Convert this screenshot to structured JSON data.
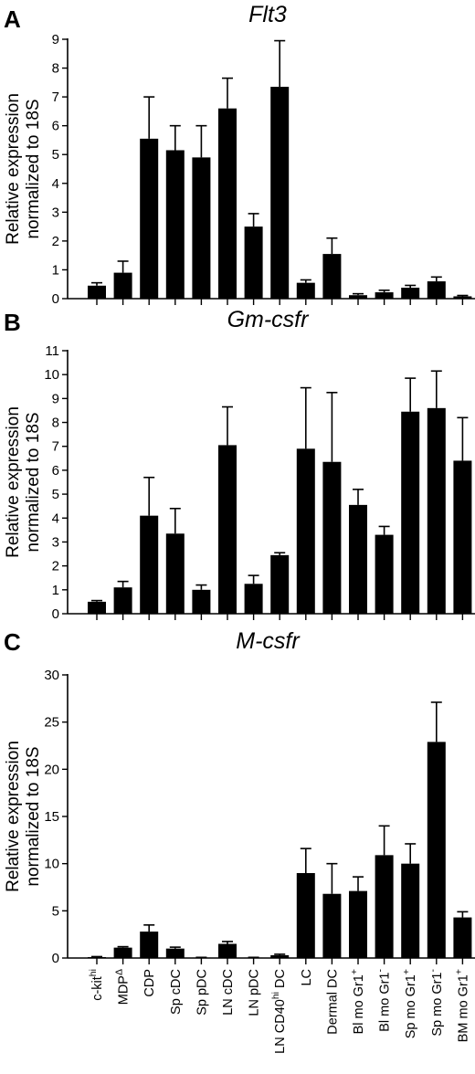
{
  "chart_data": [
    {
      "type": "bar",
      "panel": "A",
      "title": "Flt3",
      "ylabel": [
        "Relative expression",
        "normalized to 18S"
      ],
      "ylim": [
        0,
        9
      ],
      "yticks": [
        0,
        1,
        2,
        3,
        4,
        5,
        6,
        7,
        8,
        9
      ],
      "values": [
        0.45,
        0.9,
        5.55,
        5.15,
        4.9,
        6.6,
        2.5,
        7.35,
        0.55,
        1.55,
        0.12,
        0.22,
        0.38,
        0.6,
        0.08
      ],
      "errors": [
        0.1,
        0.4,
        1.45,
        0.85,
        1.1,
        1.05,
        0.45,
        1.6,
        0.1,
        0.55,
        0.05,
        0.07,
        0.08,
        0.15,
        0.03
      ],
      "grid": false
    },
    {
      "type": "bar",
      "panel": "B",
      "title": "Gm-csfr",
      "ylabel": [
        "Relative expression",
        "normalized to 18S"
      ],
      "ylim": [
        0,
        11
      ],
      "yticks": [
        0,
        1,
        2,
        3,
        4,
        5,
        6,
        7,
        8,
        9,
        10,
        11
      ],
      "values": [
        0.5,
        1.1,
        4.1,
        3.35,
        1.0,
        7.05,
        1.25,
        2.45,
        6.9,
        6.35,
        4.55,
        3.3,
        8.45,
        8.6,
        6.4
      ],
      "errors": [
        0.05,
        0.25,
        1.6,
        1.05,
        0.2,
        1.6,
        0.35,
        0.1,
        2.55,
        2.9,
        0.65,
        0.35,
        1.4,
        1.55,
        1.8
      ],
      "grid": false
    },
    {
      "type": "bar",
      "panel": "C",
      "title": "M-csfr",
      "ylabel": [
        "Relative expression",
        "normalized to 18S"
      ],
      "ylim": [
        0,
        30
      ],
      "yticks": [
        0,
        5,
        10,
        15,
        20,
        25,
        30
      ],
      "values": [
        0.1,
        1.1,
        2.8,
        1.0,
        0.05,
        1.5,
        0.05,
        0.3,
        9.0,
        6.8,
        7.1,
        10.9,
        10.0,
        22.9,
        4.3
      ],
      "errors": [
        0.05,
        0.1,
        0.7,
        0.15,
        0.02,
        0.25,
        0.02,
        0.1,
        2.6,
        3.2,
        1.5,
        3.1,
        2.1,
        4.2,
        0.6
      ],
      "grid": false
    }
  ],
  "categories": [
    {
      "main": "c-kit",
      "sup": "hi",
      "post": ""
    },
    {
      "main": "MDP",
      "sup": "Δ",
      "post": ""
    },
    {
      "main": "CDP",
      "sup": "",
      "post": ""
    },
    {
      "main": "Sp cDC",
      "sup": "",
      "post": ""
    },
    {
      "main": "Sp pDC",
      "sup": "",
      "post": ""
    },
    {
      "main": "LN cDC",
      "sup": "",
      "post": ""
    },
    {
      "main": "LN pDC",
      "sup": "",
      "post": ""
    },
    {
      "main": "LN CD40",
      "sup": "hi",
      "post": " DC"
    },
    {
      "main": "LC",
      "sup": "",
      "post": ""
    },
    {
      "main": "Dermal DC",
      "sup": "",
      "post": ""
    },
    {
      "main": "Bl mo Gr1",
      "sup": "+",
      "post": ""
    },
    {
      "main": "Bl mo Gr1",
      "sup": "-",
      "post": ""
    },
    {
      "main": "Sp mo Gr1",
      "sup": "+",
      "post": ""
    },
    {
      "main": "Sp mo Gr1",
      "sup": "-",
      "post": ""
    },
    {
      "main": "BM mo Gr1",
      "sup": "+",
      "post": ""
    }
  ],
  "colors": {
    "bar": "#000000",
    "axis": "#000000",
    "background": "#ffffff"
  }
}
